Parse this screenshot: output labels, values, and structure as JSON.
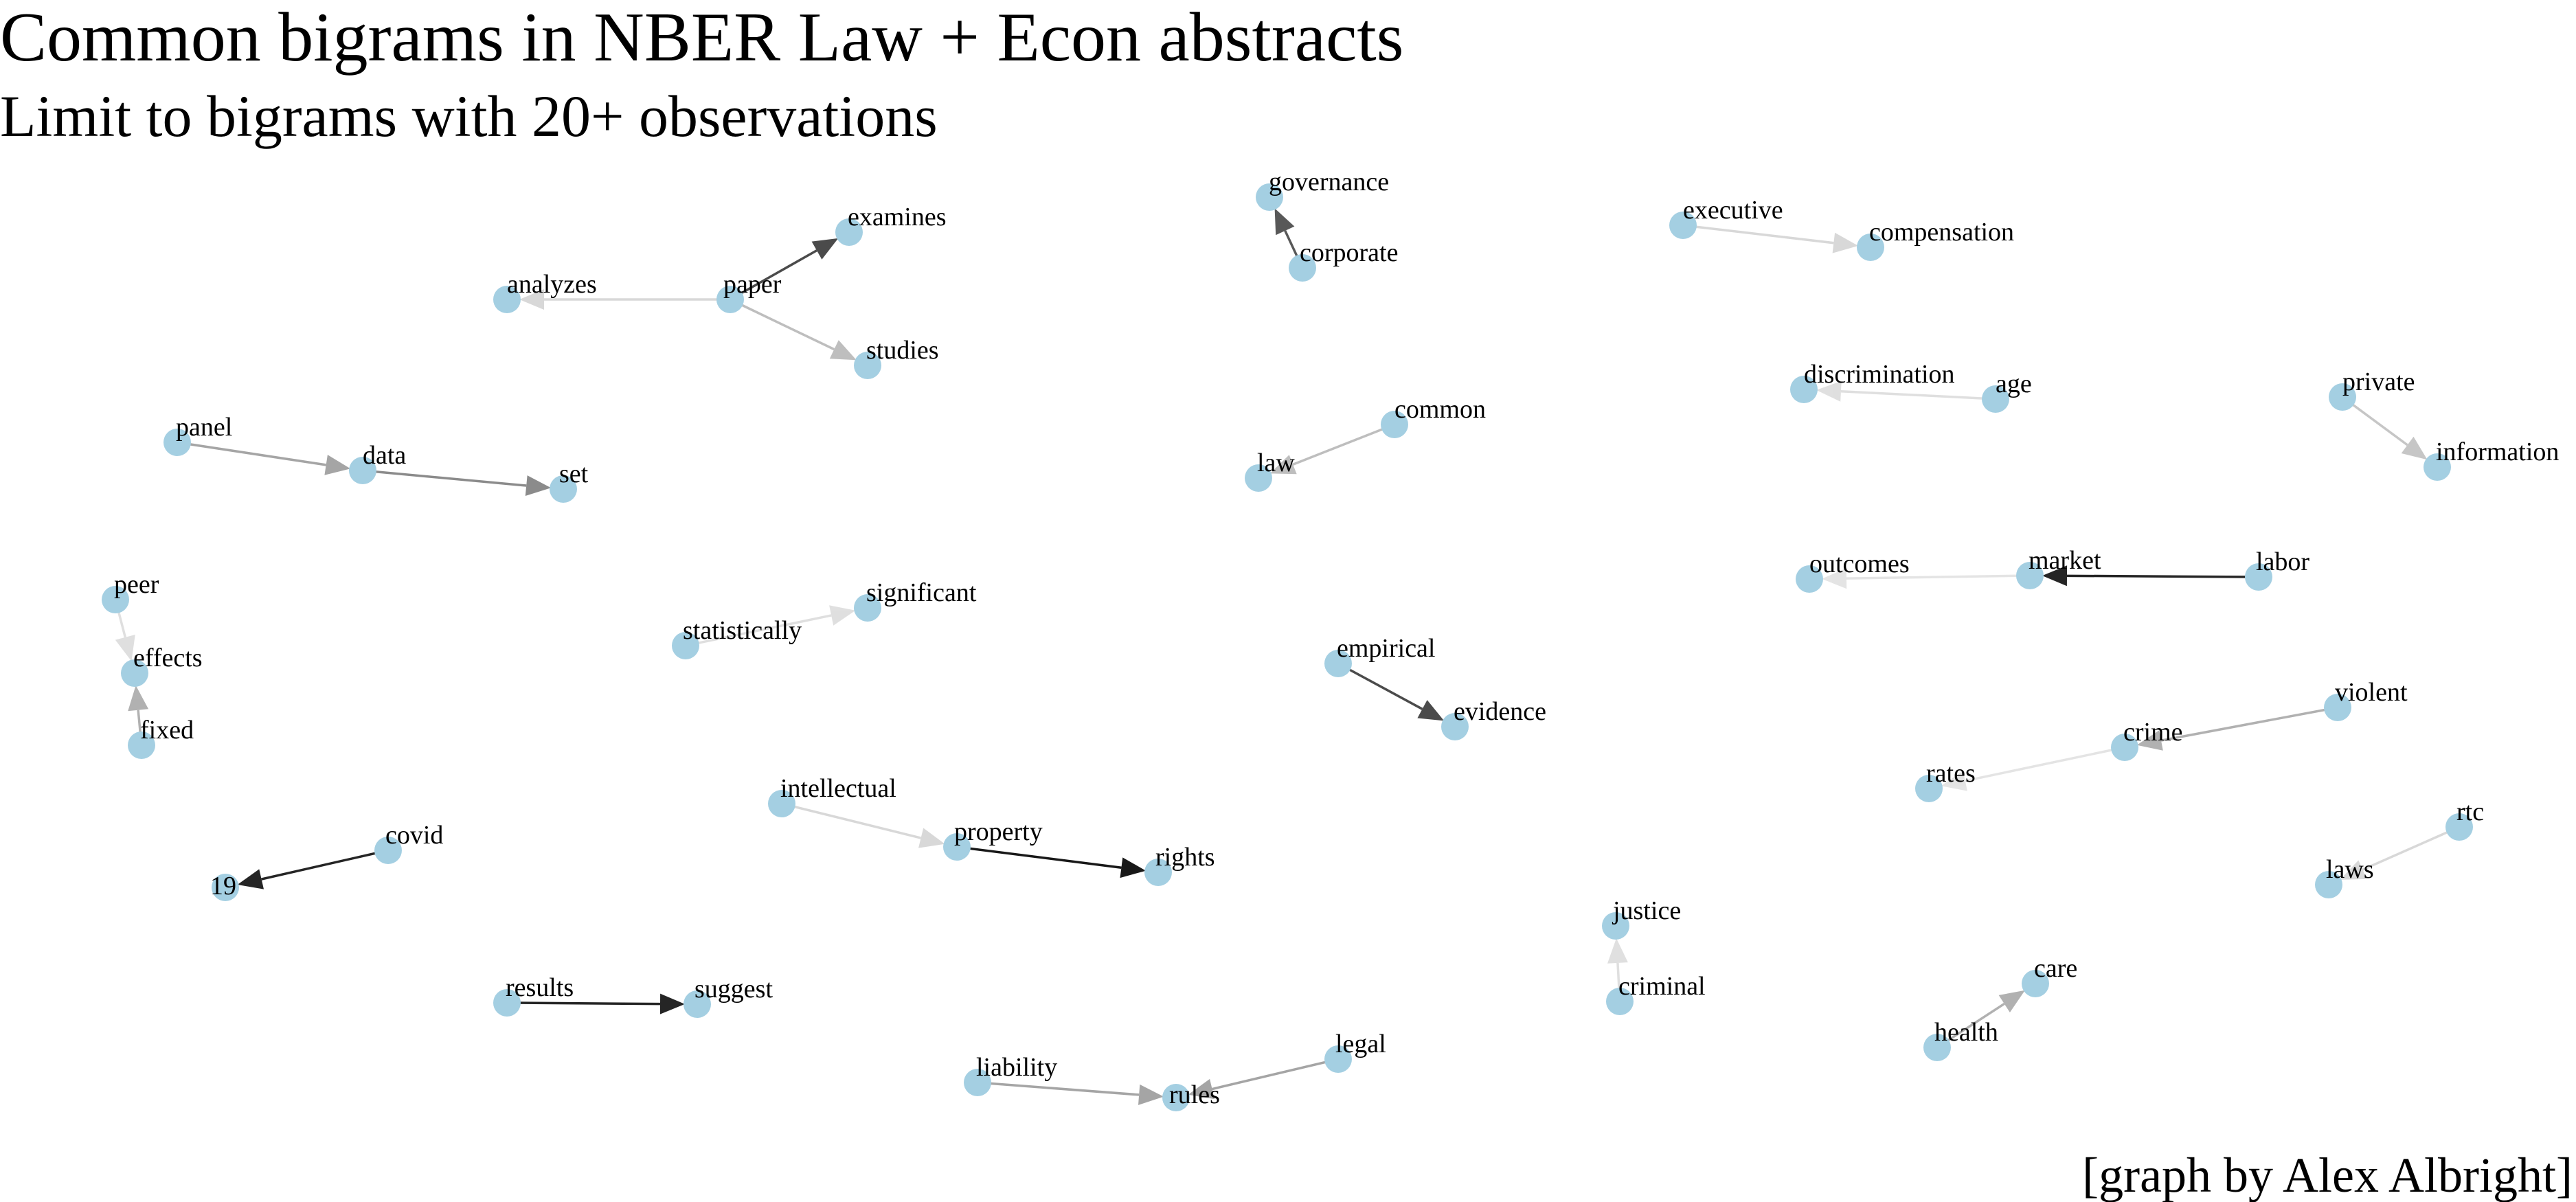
{
  "title": "Common bigrams in NBER Law + Econ abstracts",
  "subtitle": "Limit to bigrams with 20+ observations",
  "caption": "[graph by Alex Albright]",
  "colors": {
    "node": "#a4cfe2",
    "edge": "#000000",
    "label": "#000000",
    "background": "#ffffff"
  },
  "graph": {
    "nodes": [
      "analyzes",
      "paper",
      "examines",
      "studies",
      "governance",
      "corporate",
      "executive",
      "compensation",
      "panel",
      "data",
      "set",
      "common",
      "law",
      "discrimination",
      "age",
      "private",
      "information",
      "peer",
      "effects",
      "fixed",
      "statistically",
      "significant",
      "outcomes",
      "market",
      "labor",
      "empirical",
      "evidence",
      "rates",
      "crime",
      "violent",
      "intellectual",
      "property",
      "rights",
      "19",
      "covid",
      "rtc",
      "laws",
      "justice",
      "criminal",
      "results",
      "suggest",
      "care",
      "health",
      "liability",
      "rules",
      "legal"
    ],
    "edges": [
      {
        "from": "paper",
        "to": "analyzes",
        "opacity": 0.15
      },
      {
        "from": "paper",
        "to": "examines",
        "opacity": 0.7
      },
      {
        "from": "paper",
        "to": "studies",
        "opacity": 0.25
      },
      {
        "from": "corporate",
        "to": "governance",
        "opacity": 0.65
      },
      {
        "from": "executive",
        "to": "compensation",
        "opacity": 0.15
      },
      {
        "from": "panel",
        "to": "data",
        "opacity": 0.35
      },
      {
        "from": "data",
        "to": "set",
        "opacity": 0.45
      },
      {
        "from": "common",
        "to": "law",
        "opacity": 0.25
      },
      {
        "from": "age",
        "to": "discrimination",
        "opacity": 0.12
      },
      {
        "from": "private",
        "to": "information",
        "opacity": 0.22
      },
      {
        "from": "peer",
        "to": "effects",
        "opacity": 0.12
      },
      {
        "from": "fixed",
        "to": "effects",
        "opacity": 0.3
      },
      {
        "from": "statistically",
        "to": "significant",
        "opacity": 0.12
      },
      {
        "from": "market",
        "to": "outcomes",
        "opacity": 0.1
      },
      {
        "from": "labor",
        "to": "market",
        "opacity": 0.85
      },
      {
        "from": "empirical",
        "to": "evidence",
        "opacity": 0.7
      },
      {
        "from": "crime",
        "to": "rates",
        "opacity": 0.1
      },
      {
        "from": "violent",
        "to": "crime",
        "opacity": 0.3
      },
      {
        "from": "intellectual",
        "to": "property",
        "opacity": 0.15
      },
      {
        "from": "property",
        "to": "rights",
        "opacity": 0.9
      },
      {
        "from": "covid",
        "to": "19",
        "opacity": 0.85
      },
      {
        "from": "rtc",
        "to": "laws",
        "opacity": 0.15
      },
      {
        "from": "criminal",
        "to": "justice",
        "opacity": 0.12
      },
      {
        "from": "results",
        "to": "suggest",
        "opacity": 0.85
      },
      {
        "from": "health",
        "to": "care",
        "opacity": 0.3
      },
      {
        "from": "liability",
        "to": "rules",
        "opacity": 0.35
      },
      {
        "from": "legal",
        "to": "rules",
        "opacity": 0.35
      }
    ]
  }
}
